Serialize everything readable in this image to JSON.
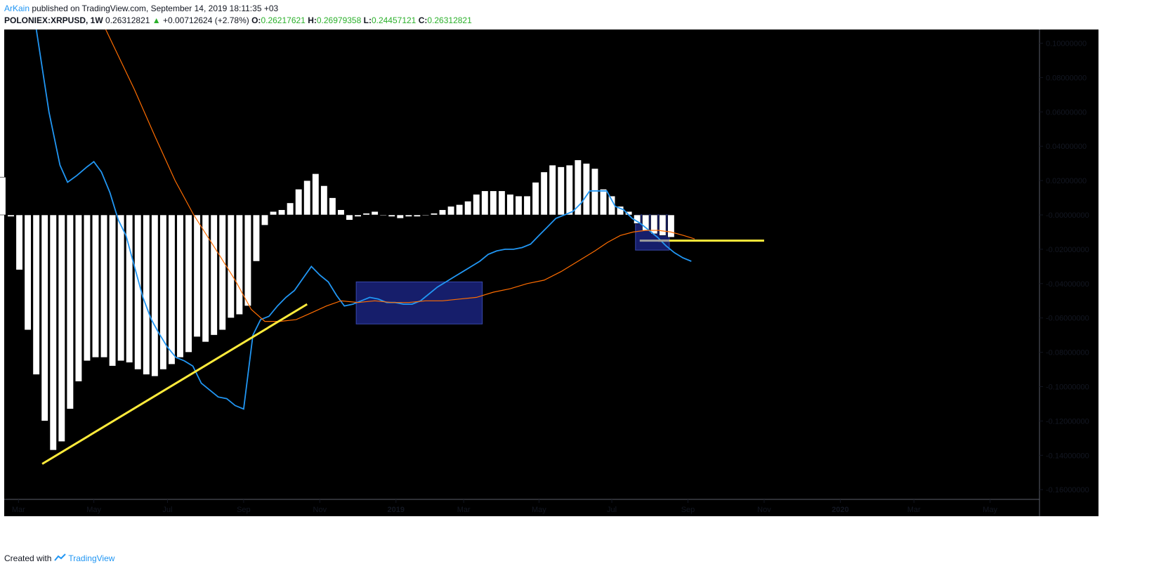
{
  "header": {
    "author": "ArKain",
    "published": "published on TradingView.com, September 14, 2019 18:11:35 +03",
    "symbol": "POLONIEX:XRPUSD, 1W",
    "last": "0.26312821",
    "change": "+0.00712624 (+2.78%)",
    "o_label": "O:",
    "o_value": "0.26217621",
    "h_label": "H:",
    "h_value": "0.26979358",
    "l_label": "L:",
    "l_value": "0.24457121",
    "c_label": "C:",
    "c_value": "0.26312821"
  },
  "footer": {
    "created_with": "Created with",
    "brand": "TradingView"
  },
  "colors": {
    "background": "#000000",
    "histogram": "#ffffff",
    "macd_line": "#2196f3",
    "signal_line": "#ff6d00",
    "trendline": "#ffeb3b",
    "highlight_box": "#1a237e",
    "gray_line": "#9e9e9e"
  },
  "chart_data": {
    "type": "bar",
    "ylim": [
      -0.165,
      0.108
    ],
    "y_ticks": [
      "0.10000000",
      "0.08000000",
      "0.06000000",
      "0.04000000",
      "0.02000000",
      "-0.00000000",
      "-0.02000000",
      "-0.04000000",
      "-0.06000000",
      "-0.08000000",
      "-0.10000000",
      "-0.12000000",
      "-0.14000000",
      "-0.16000000"
    ],
    "y_tick_values": [
      0.1,
      0.08,
      0.06,
      0.04,
      0.02,
      0,
      -0.02,
      -0.04,
      -0.06,
      -0.08,
      -0.1,
      -0.12,
      -0.14,
      -0.16
    ],
    "x_ticks": [
      "Mar",
      "May",
      "Jul",
      "Sep",
      "Nov",
      "2019",
      "Mar",
      "May",
      "Jul",
      "Sep",
      "Nov",
      "2020",
      "Mar",
      "May"
    ],
    "x_tick_bold": [
      false,
      false,
      false,
      false,
      false,
      true,
      false,
      false,
      false,
      false,
      false,
      true,
      false,
      false
    ],
    "x_tick_weeks": [
      0.9,
      9.8,
      18.5,
      27.5,
      36.5,
      45.5,
      53.5,
      62.4,
      71.0,
      80.0,
      89.0,
      98.0,
      106.7,
      115.7
    ],
    "histogram": {
      "first_week": -1,
      "values": [
        0.022,
        -0.001,
        -0.032,
        -0.067,
        -0.093,
        -0.12,
        -0.137,
        -0.132,
        -0.113,
        -0.097,
        -0.085,
        -0.083,
        -0.083,
        -0.088,
        -0.085,
        -0.086,
        -0.09,
        -0.093,
        -0.094,
        -0.09,
        -0.087,
        -0.083,
        -0.08,
        -0.071,
        -0.074,
        -0.07,
        -0.067,
        -0.06,
        -0.058,
        -0.053,
        -0.027,
        -0.006,
        0.002,
        0.003,
        0.007,
        0.015,
        0.02,
        0.024,
        0.017,
        0.01,
        0.003,
        -0.003,
        -0.001,
        0.001,
        0.002,
        0.0,
        -0.001,
        -0.002,
        -0.001,
        -0.001,
        0.0,
        0.001,
        0.003,
        0.005,
        0.006,
        0.008,
        0.012,
        0.014,
        0.014,
        0.014,
        0.012,
        0.011,
        0.011,
        0.019,
        0.025,
        0.029,
        0.028,
        0.029,
        0.032,
        0.03,
        0.027,
        0.015,
        0.011,
        0.005,
        0.002,
        -0.005,
        -0.009,
        -0.011,
        -0.012,
        -0.013
      ]
    },
    "series": [
      {
        "name": "MACD",
        "points": [
          [
            3.0,
            0.108
          ],
          [
            4.5,
            0.06
          ],
          [
            5.8,
            0.029
          ],
          [
            6.7,
            0.019
          ],
          [
            7.8,
            0.023
          ],
          [
            9.0,
            0.028
          ],
          [
            9.8,
            0.031
          ],
          [
            10.7,
            0.025
          ],
          [
            11.7,
            0.013
          ],
          [
            12.7,
            -0.003
          ],
          [
            13.6,
            -0.012
          ],
          [
            14.6,
            -0.03
          ],
          [
            15.6,
            -0.048
          ],
          [
            16.6,
            -0.061
          ],
          [
            17.5,
            -0.069
          ],
          [
            18.5,
            -0.077
          ],
          [
            19.5,
            -0.083
          ],
          [
            20.5,
            -0.085
          ],
          [
            21.5,
            -0.088
          ],
          [
            22.5,
            -0.098
          ],
          [
            23.5,
            -0.102
          ],
          [
            24.5,
            -0.106
          ],
          [
            25.5,
            -0.107
          ],
          [
            26.5,
            -0.111
          ],
          [
            27.5,
            -0.113
          ],
          [
            28.6,
            -0.07
          ],
          [
            29.5,
            -0.061
          ],
          [
            30.5,
            -0.059
          ],
          [
            31.5,
            -0.053
          ],
          [
            32.5,
            -0.048
          ],
          [
            33.5,
            -0.044
          ],
          [
            34.5,
            -0.037
          ],
          [
            35.5,
            -0.03
          ],
          [
            36.5,
            -0.035
          ],
          [
            37.5,
            -0.039
          ],
          [
            38.5,
            -0.047
          ],
          [
            39.4,
            -0.053
          ],
          [
            40.4,
            -0.052
          ],
          [
            41.4,
            -0.05
          ],
          [
            42.4,
            -0.048
          ],
          [
            43.4,
            -0.049
          ],
          [
            44.4,
            -0.051
          ],
          [
            45.4,
            -0.051
          ],
          [
            46.4,
            -0.052
          ],
          [
            47.4,
            -0.052
          ],
          [
            48.4,
            -0.05
          ],
          [
            49.4,
            -0.046
          ],
          [
            50.4,
            -0.042
          ],
          [
            51.4,
            -0.039
          ],
          [
            52.4,
            -0.036
          ],
          [
            53.4,
            -0.033
          ],
          [
            54.4,
            -0.03
          ],
          [
            55.4,
            -0.027
          ],
          [
            56.4,
            -0.023
          ],
          [
            57.4,
            -0.021
          ],
          [
            58.4,
            -0.02
          ],
          [
            59.4,
            -0.02
          ],
          [
            60.4,
            -0.019
          ],
          [
            61.4,
            -0.017
          ],
          [
            62.4,
            -0.012
          ],
          [
            63.4,
            -0.007
          ],
          [
            64.4,
            -0.002
          ],
          [
            65.4,
            0.0
          ],
          [
            66.4,
            0.002
          ],
          [
            67.4,
            0.007
          ],
          [
            68.4,
            0.014
          ],
          [
            69.4,
            0.014
          ],
          [
            70.4,
            0.014
          ],
          [
            71.4,
            0.005
          ],
          [
            72.4,
            0.003
          ],
          [
            73.4,
            -0.002
          ],
          [
            74.4,
            -0.005
          ],
          [
            75.4,
            -0.009
          ],
          [
            76.4,
            -0.013
          ],
          [
            77.4,
            -0.018
          ],
          [
            78.4,
            -0.022
          ],
          [
            79.4,
            -0.025
          ],
          [
            80.4,
            -0.027
          ]
        ]
      },
      {
        "name": "Signal",
        "points": [
          [
            11.2,
            0.108
          ],
          [
            14.6,
            0.073
          ],
          [
            17.0,
            0.046
          ],
          [
            19.4,
            0.02
          ],
          [
            21.6,
            0.0
          ],
          [
            24.2,
            -0.02
          ],
          [
            26.5,
            -0.038
          ],
          [
            28.4,
            -0.055
          ],
          [
            30.0,
            -0.062
          ],
          [
            31.8,
            -0.062
          ],
          [
            33.7,
            -0.061
          ],
          [
            35.5,
            -0.057
          ],
          [
            37.3,
            -0.053
          ],
          [
            39.0,
            -0.05
          ],
          [
            41.0,
            -0.051
          ],
          [
            43.0,
            -0.05
          ],
          [
            45.0,
            -0.051
          ],
          [
            47.0,
            -0.051
          ],
          [
            49.0,
            -0.05
          ],
          [
            51.0,
            -0.05
          ],
          [
            53.0,
            -0.049
          ],
          [
            55.0,
            -0.048
          ],
          [
            57.0,
            -0.045
          ],
          [
            59.0,
            -0.043
          ],
          [
            61.0,
            -0.04
          ],
          [
            63.0,
            -0.038
          ],
          [
            65.0,
            -0.033
          ],
          [
            67.0,
            -0.027
          ],
          [
            69.0,
            -0.021
          ],
          [
            70.5,
            -0.016
          ],
          [
            72.0,
            -0.012
          ],
          [
            73.5,
            -0.01
          ],
          [
            75.0,
            -0.009
          ],
          [
            76.5,
            -0.009
          ],
          [
            78.0,
            -0.01
          ],
          [
            79.5,
            -0.012
          ],
          [
            80.8,
            -0.014
          ]
        ]
      }
    ],
    "annotations": {
      "trendlines": [
        {
          "from": [
            3.7,
            -0.145
          ],
          "to": [
            35.0,
            -0.052
          ],
          "color": "#ffeb3b"
        },
        {
          "from": [
            76.5,
            -0.015
          ],
          "to": [
            89.0,
            -0.015
          ],
          "color": "#ffeb3b"
        }
      ],
      "gray_segment": {
        "from": [
          74.3,
          -0.015
        ],
        "to": [
          77.8,
          -0.015
        ]
      },
      "boxes": [
        {
          "x": [
            40.8,
            55.7
          ],
          "y": [
            -0.0635,
            -0.039
          ]
        },
        {
          "x": [
            73.8,
            77.8
          ],
          "y": [
            -0.0205,
            0.0
          ]
        }
      ]
    }
  }
}
